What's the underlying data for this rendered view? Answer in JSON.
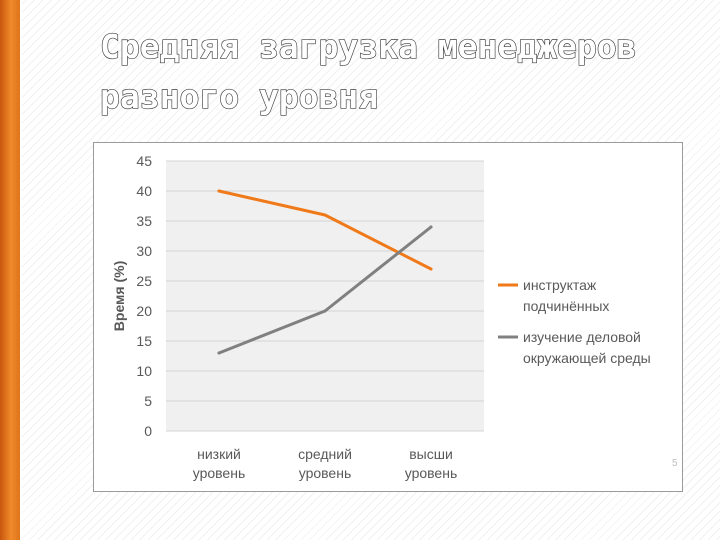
{
  "slide": {
    "title_line1": "Средняя загрузка менеджеров",
    "title_line2": "разного уровня",
    "page_number": "5"
  },
  "chart_data": {
    "type": "line",
    "categories": [
      "низкий уровень",
      "средний уровень",
      "высши уровень"
    ],
    "category_lines": [
      [
        "низкий",
        "уровень"
      ],
      [
        "средний",
        "уровень"
      ],
      [
        "высши",
        "уровень"
      ]
    ],
    "series": [
      {
        "name": "инструктаж подчинённых",
        "name_lines": [
          "инструктаж",
          "подчинённых"
        ],
        "color": "#f07a1a",
        "values": [
          40,
          36,
          27
        ]
      },
      {
        "name": "изучение деловой окружающей среды",
        "name_lines": [
          "изучение деловой",
          "окружающей среды"
        ],
        "color": "#808080",
        "values": [
          13,
          20,
          34
        ]
      }
    ],
    "ylabel": "Время (%)",
    "ylim": [
      0,
      45
    ],
    "ytick_step": 5,
    "grid": true,
    "legend_position": "right",
    "plot_background": "#f0f0f0"
  }
}
